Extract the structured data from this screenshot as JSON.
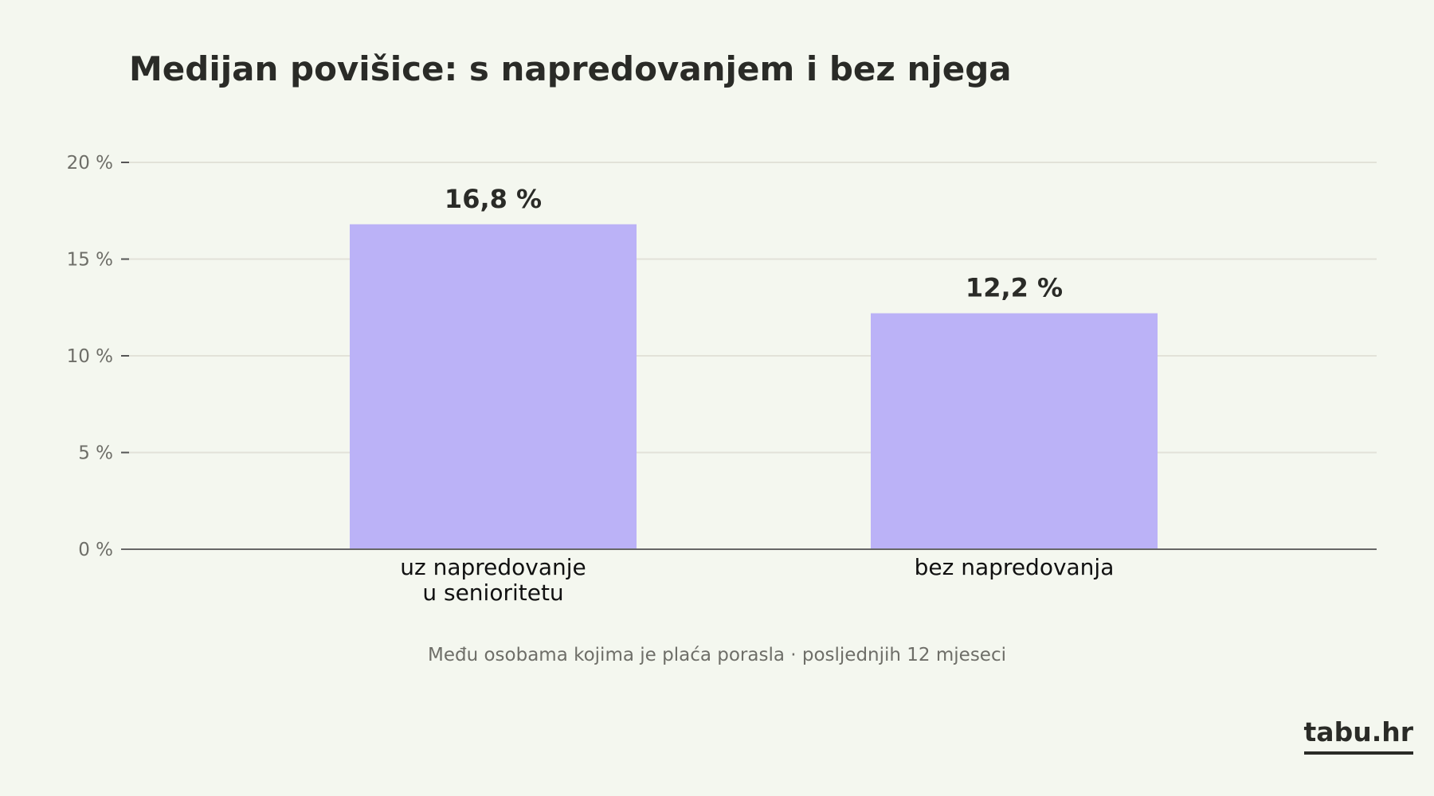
{
  "chart_data": {
    "type": "bar",
    "title": "Medijan povišice: s napredovanjem i bez njega",
    "categories": [
      [
        "uz napredovanje",
        "u senioritetu"
      ],
      [
        "bez napredovanja"
      ]
    ],
    "values": [
      16.8,
      12.2
    ],
    "value_labels": [
      "16,8 %",
      "12,2 %"
    ],
    "ylim": [
      0,
      20
    ],
    "yticks": [
      0,
      5,
      10,
      15,
      20
    ],
    "ytick_labels": [
      "0 %",
      "5 %",
      "10 %",
      "15 %",
      "20 %"
    ],
    "xlabel": "",
    "ylabel": "",
    "grid": true,
    "bar_color": "#bbb2f7"
  },
  "note": "Među osobama kojima je plaća porasla  ·  posljednjih 12 mjeseci",
  "brand": "tabu.hr"
}
